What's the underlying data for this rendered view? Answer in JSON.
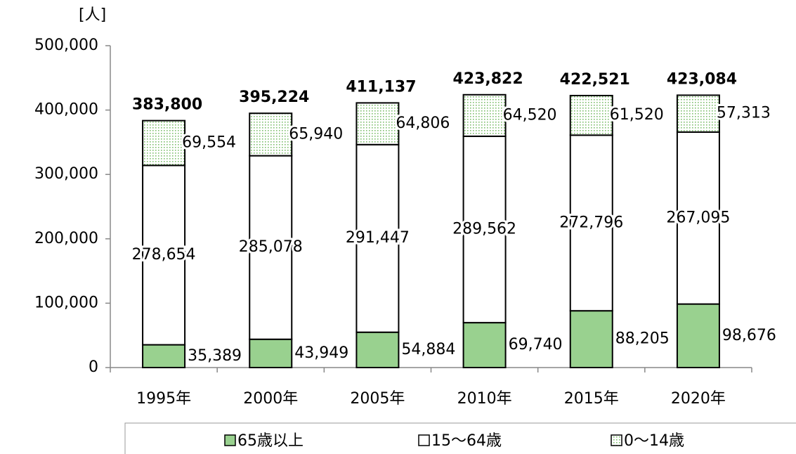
{
  "chart_data": {
    "type": "stacked_bar",
    "y_axis_label": "[人]",
    "categories": [
      "1995年",
      "2000年",
      "2005年",
      "2010年",
      "2015年",
      "2020年"
    ],
    "series": [
      {
        "name": "65歳以上",
        "color": "#99d18f",
        "values": [
          35389,
          43949,
          54884,
          69740,
          88205,
          98676
        ],
        "value_labels": [
          "35,389",
          "43,949",
          "54,884",
          "69,740",
          "88,205",
          "98,676"
        ]
      },
      {
        "name": "15〜64歳",
        "color": "#ffffff",
        "values": [
          278654,
          285078,
          291447,
          289562,
          272796,
          267095
        ],
        "value_labels": [
          "278,654",
          "285,078",
          "291,447",
          "289,562",
          "272,796",
          "267,095"
        ]
      },
      {
        "name": "0〜14歳",
        "color": "#7fbf6f",
        "pattern": "dotted",
        "values": [
          69554,
          65940,
          64806,
          64520,
          61520,
          57313
        ],
        "value_labels": [
          "69,554",
          "65,940",
          "64,806",
          "64,520",
          "61,520",
          "57,313"
        ]
      }
    ],
    "totals": [
      383800,
      395224,
      411137,
      423822,
      422521,
      423084
    ],
    "total_labels": [
      "383,800",
      "395,224",
      "411,137",
      "423,822",
      "422,521",
      "423,084"
    ],
    "ylim": [
      0,
      500000
    ],
    "yticks": [
      0,
      {
        "value": 100000,
        "label": "100,000"
      },
      {
        "value": 200000,
        "label": "200,000"
      },
      {
        "value": 300000,
        "label": "300,000"
      },
      {
        "value": 400000,
        "label": "400,000"
      },
      {
        "value": 500000,
        "label": "500,000"
      }
    ],
    "legend": "bottom"
  }
}
